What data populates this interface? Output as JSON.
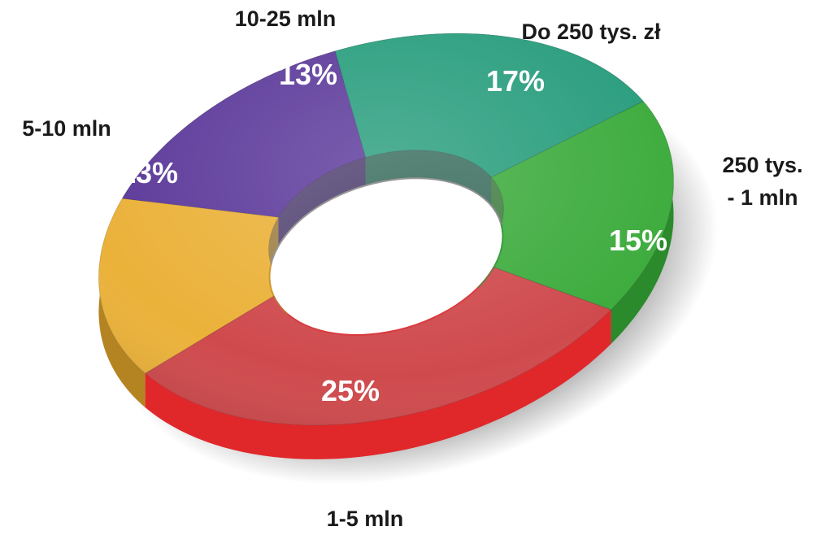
{
  "chart_data": {
    "type": "pie",
    "variant": "donut-3d",
    "title": "",
    "categories": [
      "Do 250 tys. zł",
      "250 tys. - 1 mln",
      "1-5 mln",
      "5-10 mln",
      "10-25 mln"
    ],
    "label_lines": [
      [
        "Do 250 tys. zł"
      ],
      [
        "250 tys.",
        "- 1 mln"
      ],
      [
        "1-5 mln"
      ],
      [
        "5-10 mln"
      ],
      [
        "10-25 mln"
      ]
    ],
    "values": [
      17,
      15,
      25,
      13,
      13
    ],
    "value_labels": [
      "17%",
      "15%",
      "25%",
      "13%",
      "13%"
    ],
    "colors": [
      "#2a9e7e",
      "#3eac3e",
      "#cf4a4d",
      "#ebb23a",
      "#5d3b9b"
    ],
    "side_colors": [
      "#1f6e58",
      "#2b8a2b",
      "#e0282b",
      "#b58422",
      "#3e2670"
    ],
    "start": "12 o'clock",
    "direction": "clockwise",
    "legend": "none"
  }
}
